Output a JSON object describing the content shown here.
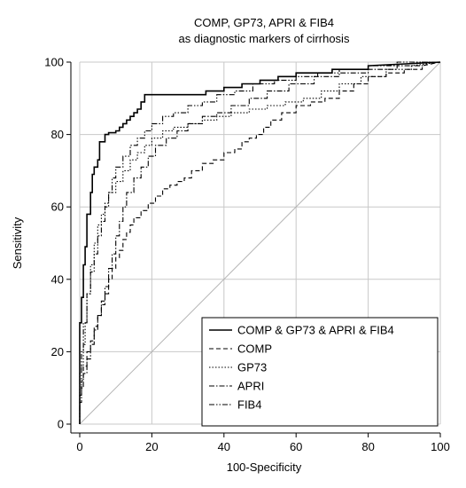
{
  "chart_data": {
    "type": "line",
    "title": "COMP, GP73, APRI & FIB4",
    "subtitle": "as diagnostic markers of cirrhosis",
    "xlabel": "100-Specificity",
    "ylabel": "Sensitivity",
    "xlim": [
      0,
      100
    ],
    "ylim": [
      0,
      100
    ],
    "xticks": [
      0,
      20,
      40,
      60,
      80,
      100
    ],
    "yticks": [
      0,
      20,
      40,
      60,
      80,
      100
    ],
    "x_tick_labels": [
      "0",
      "20",
      "40",
      "60",
      "80",
      "100"
    ],
    "y_tick_labels": [
      "0",
      "20",
      "40",
      "60",
      "80",
      "100"
    ],
    "grid": true,
    "legend_position": "bottom-right",
    "reference_line": {
      "x": [
        0,
        100
      ],
      "y": [
        0,
        100
      ]
    },
    "series": [
      {
        "name": "COMP & GP73 & APRI & FIB4",
        "x": [
          0,
          0,
          0.5,
          0.5,
          1,
          1,
          1.5,
          1.5,
          2,
          2,
          3,
          3,
          3.5,
          3.5,
          4,
          4,
          5,
          5,
          5.5,
          5.5,
          7,
          7,
          8,
          8,
          10,
          10,
          11,
          11,
          12,
          12,
          13,
          13,
          14,
          14,
          15,
          15,
          16,
          16,
          17,
          17,
          18,
          18,
          35,
          35,
          40,
          40,
          45,
          45,
          50,
          50,
          55,
          55,
          60,
          60,
          70,
          70,
          80,
          80,
          100
        ],
        "y": [
          0,
          28,
          28,
          35,
          35,
          44,
          44,
          49,
          49,
          58,
          58,
          64,
          64,
          69,
          69,
          71,
          71,
          73,
          73,
          78,
          78,
          80,
          80,
          80.5,
          80.5,
          81,
          81,
          82,
          82,
          83,
          83,
          84,
          84,
          85,
          85,
          86,
          86,
          87,
          87,
          89,
          89,
          91,
          91,
          92,
          92,
          93,
          93,
          94,
          94,
          95,
          95,
          96,
          96,
          97,
          97,
          98,
          98,
          99,
          100
        ]
      },
      {
        "name": "COMP",
        "x": [
          0,
          0,
          0.5,
          0.5,
          1,
          1,
          2,
          2,
          3,
          3,
          4,
          4,
          5,
          5,
          6,
          6,
          7,
          7,
          8,
          8,
          9,
          9,
          10,
          10,
          11,
          11,
          12,
          12,
          13,
          13,
          14,
          14,
          15,
          15,
          17,
          17,
          19,
          19,
          21,
          21,
          23,
          23,
          25,
          25,
          27,
          27,
          29,
          29,
          31,
          31,
          34,
          34,
          37,
          37,
          40,
          40,
          43,
          43,
          45,
          45,
          47,
          47,
          49,
          49,
          51,
          51,
          53,
          53,
          56,
          56,
          60,
          60,
          64,
          64,
          68,
          68,
          72,
          72,
          76,
          76,
          80,
          80,
          85,
          85,
          90,
          90,
          95,
          95,
          100
        ],
        "y": [
          0,
          8,
          8,
          12,
          12,
          16,
          16,
          20,
          20,
          23,
          23,
          27,
          27,
          30,
          30,
          33,
          33,
          36,
          36,
          40,
          40,
          43,
          43,
          46,
          46,
          48,
          48,
          51,
          51,
          53,
          53,
          55,
          55,
          57,
          57,
          59,
          59,
          61,
          61,
          63,
          63,
          65,
          65,
          66,
          66,
          67,
          67,
          68,
          68,
          70,
          70,
          72,
          72,
          73,
          73,
          75,
          75,
          76,
          76,
          78,
          78,
          79,
          79,
          80,
          80,
          82,
          82,
          84,
          84,
          86,
          86,
          88,
          88,
          89,
          89,
          90,
          90,
          92,
          92,
          94,
          94,
          96,
          96,
          97,
          97,
          98,
          98,
          99,
          100
        ]
      },
      {
        "name": "GP73",
        "x": [
          0,
          0,
          0.5,
          0.5,
          1,
          1,
          1.5,
          1.5,
          2,
          2,
          3,
          3,
          4,
          4,
          5,
          5,
          6,
          6,
          7,
          7,
          8,
          8,
          10,
          10,
          12,
          12,
          14,
          14,
          16,
          16,
          18,
          18,
          20,
          20,
          23,
          23,
          26,
          26,
          30,
          30,
          34,
          34,
          38,
          38,
          42,
          42,
          47,
          47,
          52,
          52,
          57,
          57,
          62,
          62,
          67,
          67,
          72,
          72,
          78,
          78,
          85,
          85,
          92,
          92,
          100
        ],
        "y": [
          0,
          10,
          10,
          16,
          16,
          22,
          22,
          28,
          28,
          36,
          36,
          44,
          44,
          50,
          50,
          55,
          55,
          58,
          58,
          61,
          61,
          64,
          64,
          67,
          67,
          70,
          70,
          73,
          73,
          75,
          75,
          77,
          77,
          79,
          79,
          81,
          81,
          82,
          82,
          83,
          83,
          84,
          84,
          85,
          85,
          86,
          86,
          87,
          87,
          88,
          88,
          89,
          89,
          90,
          90,
          92,
          92,
          94,
          94,
          96,
          96,
          98,
          98,
          99,
          100
        ]
      },
      {
        "name": "APRI",
        "x": [
          0,
          0,
          0.5,
          0.5,
          1,
          1,
          2,
          2,
          3,
          3,
          4,
          4,
          5,
          5,
          6,
          6,
          7,
          7,
          8,
          8,
          9,
          9,
          10,
          10,
          11,
          11,
          12,
          12,
          13,
          13,
          15,
          15,
          17,
          17,
          19,
          19,
          21,
          21,
          24,
          24,
          27,
          27,
          30,
          30,
          34,
          34,
          38,
          38,
          42,
          42,
          47,
          47,
          52,
          52,
          58,
          58,
          65,
          65,
          72,
          72,
          80,
          80,
          88,
          88,
          95,
          95,
          100
        ],
        "y": [
          0,
          6,
          6,
          10,
          10,
          14,
          14,
          18,
          18,
          22,
          22,
          26,
          26,
          30,
          30,
          34,
          34,
          38,
          38,
          43,
          43,
          47,
          47,
          52,
          52,
          56,
          56,
          60,
          60,
          64,
          64,
          68,
          68,
          71,
          71,
          74,
          74,
          77,
          77,
          79,
          79,
          81,
          81,
          83,
          83,
          85,
          85,
          86,
          86,
          88,
          88,
          90,
          90,
          92,
          92,
          94,
          94,
          96,
          96,
          97,
          97,
          98,
          98,
          99,
          99,
          100,
          100
        ]
      },
      {
        "name": "FIB4",
        "x": [
          0,
          0,
          0.5,
          0.5,
          1,
          1,
          2,
          2,
          3,
          3,
          4,
          4,
          5,
          5,
          6,
          6,
          7,
          7,
          8,
          8,
          9,
          9,
          10,
          10,
          12,
          12,
          14,
          14,
          16,
          16,
          18,
          18,
          20,
          20,
          23,
          23,
          26,
          26,
          30,
          30,
          34,
          34,
          38,
          38,
          43,
          43,
          48,
          48,
          54,
          54,
          60,
          60,
          66,
          66,
          72,
          72,
          80,
          80,
          88,
          88,
          100
        ],
        "y": [
          0,
          14,
          14,
          20,
          20,
          28,
          28,
          36,
          36,
          42,
          42,
          47,
          47,
          52,
          52,
          56,
          56,
          60,
          60,
          64,
          64,
          68,
          68,
          71,
          71,
          74,
          74,
          77,
          77,
          79,
          79,
          81,
          81,
          83,
          83,
          85,
          85,
          86,
          86,
          88,
          88,
          89,
          89,
          91,
          91,
          92,
          92,
          94,
          94,
          95,
          95,
          96,
          96,
          97,
          97,
          98,
          98,
          99,
          99,
          100,
          100
        ]
      }
    ]
  },
  "styles": {
    "line_color": "#000000",
    "grid_color": "#c8c8c8",
    "reference_color": "#b4b4b4",
    "background": "#ffffff"
  }
}
